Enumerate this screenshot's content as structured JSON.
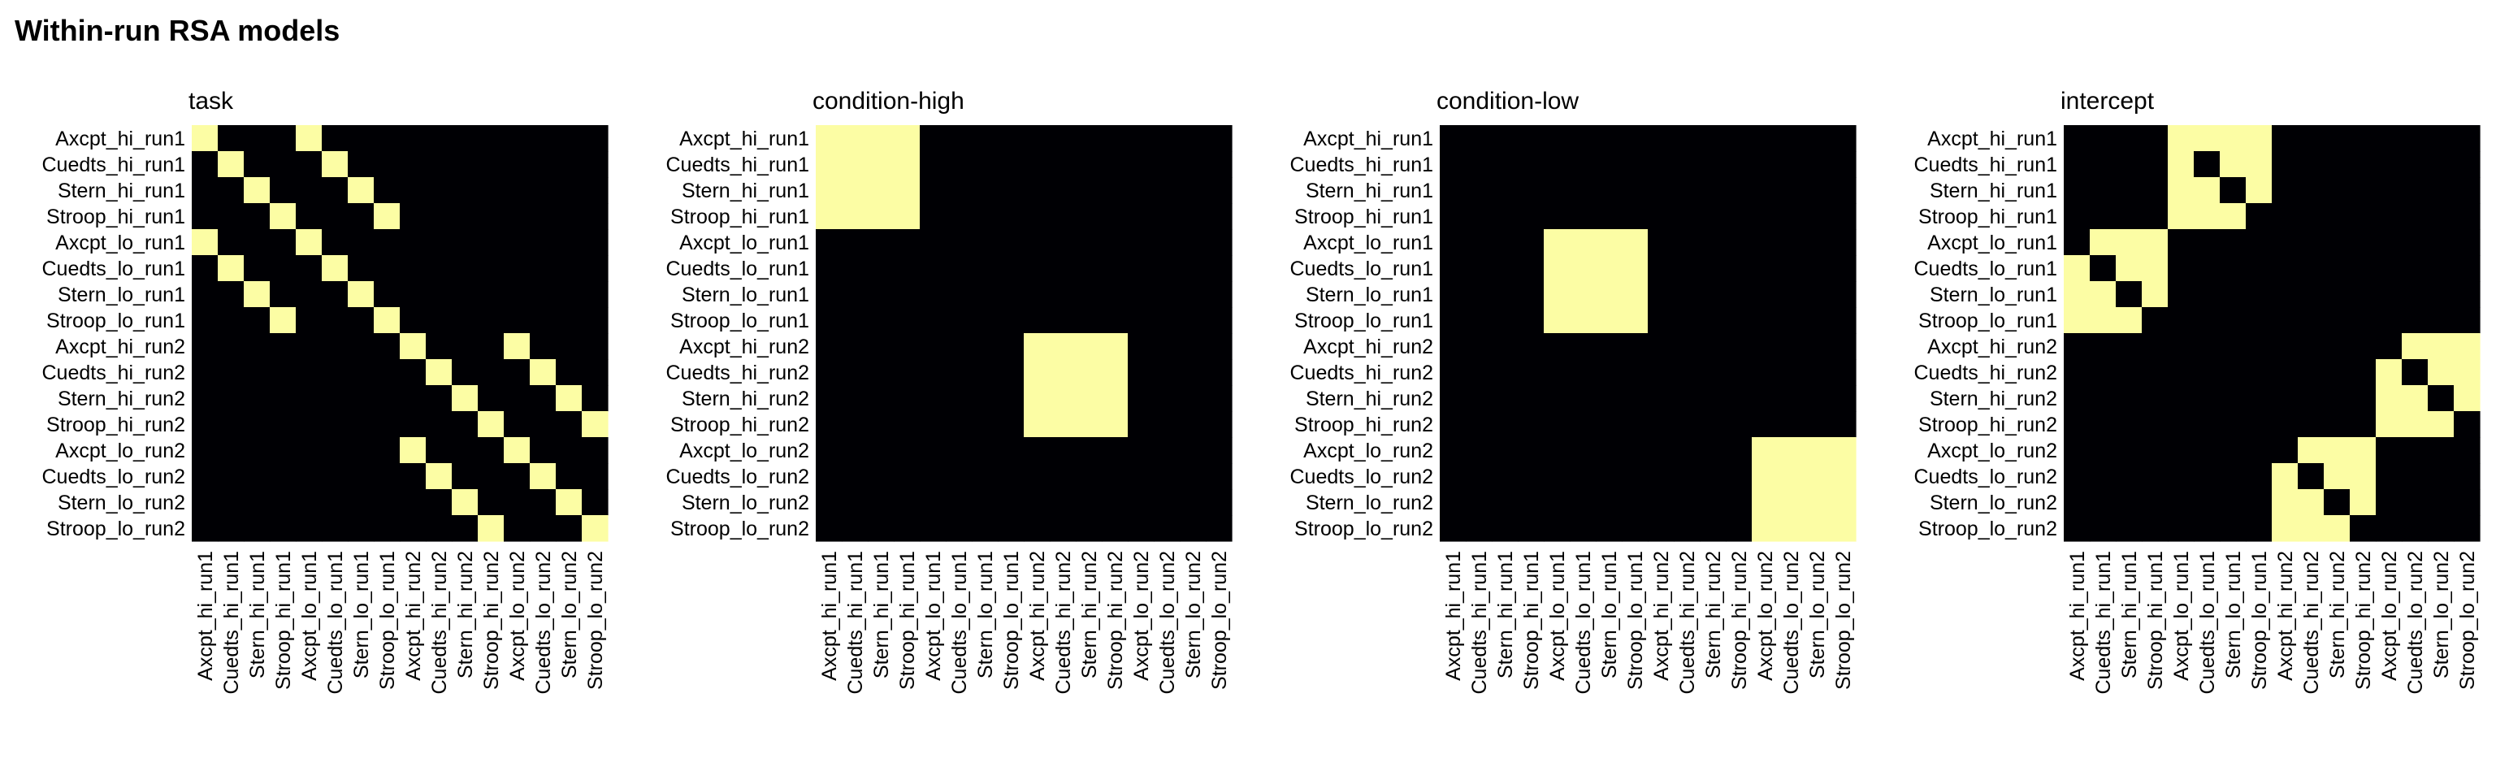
{
  "title": "Within-run RSA models",
  "labels": [
    "Axcpt_hi_run1",
    "Cuedts_hi_run1",
    "Stern_hi_run1",
    "Stroop_hi_run1",
    "Axcpt_lo_run1",
    "Cuedts_lo_run1",
    "Stern_lo_run1",
    "Stroop_lo_run1",
    "Axcpt_hi_run2",
    "Cuedts_hi_run2",
    "Stern_hi_run2",
    "Stroop_hi_run2",
    "Axcpt_lo_run2",
    "Cuedts_lo_run2",
    "Stern_lo_run2",
    "Stroop_lo_run2"
  ],
  "colors": {
    "on": "#FCFDA4",
    "off": "#000004"
  },
  "chart_data": [
    {
      "type": "heatmap",
      "title": "task",
      "values": [
        [
          1,
          0,
          0,
          0,
          1,
          0,
          0,
          0,
          0,
          0,
          0,
          0,
          0,
          0,
          0,
          0
        ],
        [
          0,
          1,
          0,
          0,
          0,
          1,
          0,
          0,
          0,
          0,
          0,
          0,
          0,
          0,
          0,
          0
        ],
        [
          0,
          0,
          1,
          0,
          0,
          0,
          1,
          0,
          0,
          0,
          0,
          0,
          0,
          0,
          0,
          0
        ],
        [
          0,
          0,
          0,
          1,
          0,
          0,
          0,
          1,
          0,
          0,
          0,
          0,
          0,
          0,
          0,
          0
        ],
        [
          1,
          0,
          0,
          0,
          1,
          0,
          0,
          0,
          0,
          0,
          0,
          0,
          0,
          0,
          0,
          0
        ],
        [
          0,
          1,
          0,
          0,
          0,
          1,
          0,
          0,
          0,
          0,
          0,
          0,
          0,
          0,
          0,
          0
        ],
        [
          0,
          0,
          1,
          0,
          0,
          0,
          1,
          0,
          0,
          0,
          0,
          0,
          0,
          0,
          0,
          0
        ],
        [
          0,
          0,
          0,
          1,
          0,
          0,
          0,
          1,
          0,
          0,
          0,
          0,
          0,
          0,
          0,
          0
        ],
        [
          0,
          0,
          0,
          0,
          0,
          0,
          0,
          0,
          1,
          0,
          0,
          0,
          1,
          0,
          0,
          0
        ],
        [
          0,
          0,
          0,
          0,
          0,
          0,
          0,
          0,
          0,
          1,
          0,
          0,
          0,
          1,
          0,
          0
        ],
        [
          0,
          0,
          0,
          0,
          0,
          0,
          0,
          0,
          0,
          0,
          1,
          0,
          0,
          0,
          1,
          0
        ],
        [
          0,
          0,
          0,
          0,
          0,
          0,
          0,
          0,
          0,
          0,
          0,
          1,
          0,
          0,
          0,
          1
        ],
        [
          0,
          0,
          0,
          0,
          0,
          0,
          0,
          0,
          1,
          0,
          0,
          0,
          1,
          0,
          0,
          0
        ],
        [
          0,
          0,
          0,
          0,
          0,
          0,
          0,
          0,
          0,
          1,
          0,
          0,
          0,
          1,
          0,
          0
        ],
        [
          0,
          0,
          0,
          0,
          0,
          0,
          0,
          0,
          0,
          0,
          1,
          0,
          0,
          0,
          1,
          0
        ],
        [
          0,
          0,
          0,
          0,
          0,
          0,
          0,
          0,
          0,
          0,
          0,
          1,
          0,
          0,
          0,
          1
        ]
      ]
    },
    {
      "type": "heatmap",
      "title": "condition-high",
      "values": [
        [
          1,
          1,
          1,
          1,
          0,
          0,
          0,
          0,
          0,
          0,
          0,
          0,
          0,
          0,
          0,
          0
        ],
        [
          1,
          1,
          1,
          1,
          0,
          0,
          0,
          0,
          0,
          0,
          0,
          0,
          0,
          0,
          0,
          0
        ],
        [
          1,
          1,
          1,
          1,
          0,
          0,
          0,
          0,
          0,
          0,
          0,
          0,
          0,
          0,
          0,
          0
        ],
        [
          1,
          1,
          1,
          1,
          0,
          0,
          0,
          0,
          0,
          0,
          0,
          0,
          0,
          0,
          0,
          0
        ],
        [
          0,
          0,
          0,
          0,
          0,
          0,
          0,
          0,
          0,
          0,
          0,
          0,
          0,
          0,
          0,
          0
        ],
        [
          0,
          0,
          0,
          0,
          0,
          0,
          0,
          0,
          0,
          0,
          0,
          0,
          0,
          0,
          0,
          0
        ],
        [
          0,
          0,
          0,
          0,
          0,
          0,
          0,
          0,
          0,
          0,
          0,
          0,
          0,
          0,
          0,
          0
        ],
        [
          0,
          0,
          0,
          0,
          0,
          0,
          0,
          0,
          0,
          0,
          0,
          0,
          0,
          0,
          0,
          0
        ],
        [
          0,
          0,
          0,
          0,
          0,
          0,
          0,
          0,
          1,
          1,
          1,
          1,
          0,
          0,
          0,
          0
        ],
        [
          0,
          0,
          0,
          0,
          0,
          0,
          0,
          0,
          1,
          1,
          1,
          1,
          0,
          0,
          0,
          0
        ],
        [
          0,
          0,
          0,
          0,
          0,
          0,
          0,
          0,
          1,
          1,
          1,
          1,
          0,
          0,
          0,
          0
        ],
        [
          0,
          0,
          0,
          0,
          0,
          0,
          0,
          0,
          1,
          1,
          1,
          1,
          0,
          0,
          0,
          0
        ],
        [
          0,
          0,
          0,
          0,
          0,
          0,
          0,
          0,
          0,
          0,
          0,
          0,
          0,
          0,
          0,
          0
        ],
        [
          0,
          0,
          0,
          0,
          0,
          0,
          0,
          0,
          0,
          0,
          0,
          0,
          0,
          0,
          0,
          0
        ],
        [
          0,
          0,
          0,
          0,
          0,
          0,
          0,
          0,
          0,
          0,
          0,
          0,
          0,
          0,
          0,
          0
        ],
        [
          0,
          0,
          0,
          0,
          0,
          0,
          0,
          0,
          0,
          0,
          0,
          0,
          0,
          0,
          0,
          0
        ]
      ]
    },
    {
      "type": "heatmap",
      "title": "condition-low",
      "values": [
        [
          0,
          0,
          0,
          0,
          0,
          0,
          0,
          0,
          0,
          0,
          0,
          0,
          0,
          0,
          0,
          0
        ],
        [
          0,
          0,
          0,
          0,
          0,
          0,
          0,
          0,
          0,
          0,
          0,
          0,
          0,
          0,
          0,
          0
        ],
        [
          0,
          0,
          0,
          0,
          0,
          0,
          0,
          0,
          0,
          0,
          0,
          0,
          0,
          0,
          0,
          0
        ],
        [
          0,
          0,
          0,
          0,
          0,
          0,
          0,
          0,
          0,
          0,
          0,
          0,
          0,
          0,
          0,
          0
        ],
        [
          0,
          0,
          0,
          0,
          1,
          1,
          1,
          1,
          0,
          0,
          0,
          0,
          0,
          0,
          0,
          0
        ],
        [
          0,
          0,
          0,
          0,
          1,
          1,
          1,
          1,
          0,
          0,
          0,
          0,
          0,
          0,
          0,
          0
        ],
        [
          0,
          0,
          0,
          0,
          1,
          1,
          1,
          1,
          0,
          0,
          0,
          0,
          0,
          0,
          0,
          0
        ],
        [
          0,
          0,
          0,
          0,
          1,
          1,
          1,
          1,
          0,
          0,
          0,
          0,
          0,
          0,
          0,
          0
        ],
        [
          0,
          0,
          0,
          0,
          0,
          0,
          0,
          0,
          0,
          0,
          0,
          0,
          0,
          0,
          0,
          0
        ],
        [
          0,
          0,
          0,
          0,
          0,
          0,
          0,
          0,
          0,
          0,
          0,
          0,
          0,
          0,
          0,
          0
        ],
        [
          0,
          0,
          0,
          0,
          0,
          0,
          0,
          0,
          0,
          0,
          0,
          0,
          0,
          0,
          0,
          0
        ],
        [
          0,
          0,
          0,
          0,
          0,
          0,
          0,
          0,
          0,
          0,
          0,
          0,
          0,
          0,
          0,
          0
        ],
        [
          0,
          0,
          0,
          0,
          0,
          0,
          0,
          0,
          0,
          0,
          0,
          0,
          1,
          1,
          1,
          1
        ],
        [
          0,
          0,
          0,
          0,
          0,
          0,
          0,
          0,
          0,
          0,
          0,
          0,
          1,
          1,
          1,
          1
        ],
        [
          0,
          0,
          0,
          0,
          0,
          0,
          0,
          0,
          0,
          0,
          0,
          0,
          1,
          1,
          1,
          1
        ],
        [
          0,
          0,
          0,
          0,
          0,
          0,
          0,
          0,
          0,
          0,
          0,
          0,
          1,
          1,
          1,
          1
        ]
      ]
    },
    {
      "type": "heatmap",
      "title": "intercept",
      "values": [
        [
          0,
          0,
          0,
          0,
          1,
          1,
          1,
          1,
          0,
          0,
          0,
          0,
          0,
          0,
          0,
          0
        ],
        [
          0,
          0,
          0,
          0,
          1,
          0,
          1,
          1,
          0,
          0,
          0,
          0,
          0,
          0,
          0,
          0
        ],
        [
          0,
          0,
          0,
          0,
          1,
          1,
          0,
          1,
          0,
          0,
          0,
          0,
          0,
          0,
          0,
          0
        ],
        [
          0,
          0,
          0,
          0,
          1,
          1,
          1,
          0,
          0,
          0,
          0,
          0,
          0,
          0,
          0,
          0
        ],
        [
          0,
          1,
          1,
          1,
          0,
          0,
          0,
          0,
          0,
          0,
          0,
          0,
          0,
          0,
          0,
          0
        ],
        [
          1,
          0,
          1,
          1,
          0,
          0,
          0,
          0,
          0,
          0,
          0,
          0,
          0,
          0,
          0,
          0
        ],
        [
          1,
          1,
          0,
          1,
          0,
          0,
          0,
          0,
          0,
          0,
          0,
          0,
          0,
          0,
          0,
          0
        ],
        [
          1,
          1,
          1,
          0,
          0,
          0,
          0,
          0,
          0,
          0,
          0,
          0,
          0,
          0,
          0,
          0
        ],
        [
          0,
          0,
          0,
          0,
          0,
          0,
          0,
          0,
          0,
          0,
          0,
          0,
          0,
          1,
          1,
          1
        ],
        [
          0,
          0,
          0,
          0,
          0,
          0,
          0,
          0,
          0,
          0,
          0,
          0,
          1,
          0,
          1,
          1
        ],
        [
          0,
          0,
          0,
          0,
          0,
          0,
          0,
          0,
          0,
          0,
          0,
          0,
          1,
          1,
          0,
          1
        ],
        [
          0,
          0,
          0,
          0,
          0,
          0,
          0,
          0,
          0,
          0,
          0,
          0,
          1,
          1,
          1,
          0
        ],
        [
          0,
          0,
          0,
          0,
          0,
          0,
          0,
          0,
          0,
          1,
          1,
          1,
          0,
          0,
          0,
          0
        ],
        [
          0,
          0,
          0,
          0,
          0,
          0,
          0,
          0,
          1,
          0,
          1,
          1,
          0,
          0,
          0,
          0
        ],
        [
          0,
          0,
          0,
          0,
          0,
          0,
          0,
          0,
          1,
          1,
          0,
          1,
          0,
          0,
          0,
          0
        ],
        [
          0,
          0,
          0,
          0,
          0,
          0,
          0,
          0,
          1,
          1,
          1,
          0,
          0,
          0,
          0,
          0
        ]
      ]
    }
  ]
}
